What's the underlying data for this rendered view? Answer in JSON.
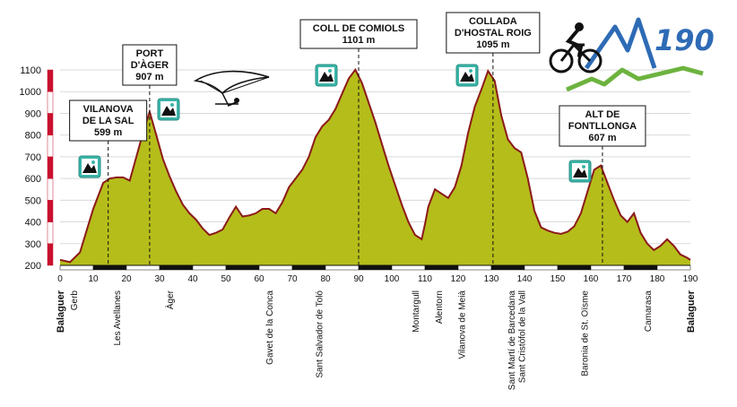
{
  "chart_data": {
    "type": "area",
    "title": "",
    "xlabel": "",
    "ylabel": "",
    "xlim": [
      0,
      190
    ],
    "ylim": [
      200,
      1100
    ],
    "x_ticks": [
      0,
      10,
      20,
      30,
      40,
      50,
      60,
      70,
      80,
      90,
      100,
      110,
      120,
      130,
      140,
      150,
      160,
      170,
      180,
      190
    ],
    "y_ticks": [
      200,
      300,
      400,
      500,
      600,
      700,
      800,
      900,
      1000,
      1100
    ],
    "fill_color": "#b5bd1a",
    "outline_color": "#8b1a1a",
    "x": [
      0,
      3,
      6,
      8,
      10,
      12,
      13,
      15,
      17,
      19,
      21,
      23,
      25,
      27,
      29,
      31,
      33,
      35,
      37,
      39,
      41,
      43,
      45,
      47,
      49,
      51,
      53,
      55,
      57,
      59,
      61,
      63,
      65,
      67,
      69,
      71,
      73,
      75,
      77,
      79,
      81,
      83,
      85,
      87,
      89,
      91,
      93,
      95,
      97,
      99,
      101,
      103,
      105,
      107,
      109,
      110,
      111,
      113,
      115,
      117,
      119,
      121,
      123,
      125,
      127,
      129,
      131,
      133,
      135,
      137,
      139,
      141,
      143,
      145,
      147,
      149,
      151,
      153,
      155,
      157,
      159,
      161,
      163,
      165,
      167,
      169,
      171,
      173,
      175,
      177,
      179,
      181,
      183,
      185,
      187,
      189,
      190
    ],
    "values": [
      225,
      215,
      260,
      360,
      460,
      540,
      580,
      600,
      605,
      605,
      590,
      700,
      810,
      907,
      800,
      690,
      610,
      540,
      480,
      440,
      410,
      370,
      340,
      350,
      365,
      420,
      470,
      425,
      430,
      440,
      460,
      460,
      440,
      490,
      560,
      600,
      640,
      700,
      790,
      840,
      870,
      920,
      990,
      1060,
      1101,
      1040,
      950,
      860,
      760,
      660,
      570,
      480,
      400,
      340,
      320,
      390,
      470,
      550,
      530,
      510,
      560,
      660,
      810,
      930,
      1010,
      1095,
      1050,
      890,
      780,
      740,
      720,
      600,
      450,
      375,
      360,
      350,
      345,
      355,
      380,
      440,
      540,
      640,
      660,
      580,
      500,
      430,
      400,
      440,
      350,
      300,
      270,
      290,
      320,
      290,
      250,
      235,
      225
    ],
    "peaks": [
      {
        "name_lines": [
          "VILANOVA",
          "DE LA SAL"
        ],
        "elevation": "599 m",
        "km": 14.5
      },
      {
        "name_lines": [
          "PORT",
          "D'ÀGER"
        ],
        "elevation": "907 m",
        "km": 27
      },
      {
        "name_lines": [
          "COLL DE COMIOLS"
        ],
        "elevation": "1101 m",
        "km": 90
      },
      {
        "name_lines": [
          "COLLADA",
          "D'HOSTAL ROIG"
        ],
        "elevation": "1095 m",
        "km": 130.5
      },
      {
        "name_lines": [
          "ALT DE",
          "FONTLLONGA"
        ],
        "elevation": "607 m",
        "km": 163.5
      }
    ],
    "towns": [
      {
        "name": "Balaguer",
        "km": 0,
        "bold": true
      },
      {
        "name": "Gerb",
        "km": 4
      },
      {
        "name": "Les Avellanes",
        "km": 17
      },
      {
        "name": "Àger",
        "km": 33
      },
      {
        "name": "Gavet de la Conca",
        "km": 63
      },
      {
        "name": "Sant Salvador de Toló",
        "km": 78
      },
      {
        "name": "Montargull",
        "km": 107
      },
      {
        "name": "Alentorn",
        "km": 114
      },
      {
        "name": "Vilanova de Meià",
        "km": 121
      },
      {
        "name": "Sant Martí de Barcedana",
        "km": 136
      },
      {
        "name": "Sant Cristòfol de la Vall",
        "km": 139
      },
      {
        "name": "Baronia de St. Oïsme",
        "km": 158
      },
      {
        "name": "Camarasa",
        "km": 177
      },
      {
        "name": "Balaguer",
        "km": 190,
        "bold": true
      }
    ]
  },
  "logo": {
    "text": "190",
    "colors": {
      "bike": "#111111",
      "mountain_blue": "#2e6bb5",
      "mountain_green": "#6db33f"
    }
  },
  "icons": {
    "peak_badge": "mountain-badge-icon",
    "glider": "hang-glider-icon"
  }
}
